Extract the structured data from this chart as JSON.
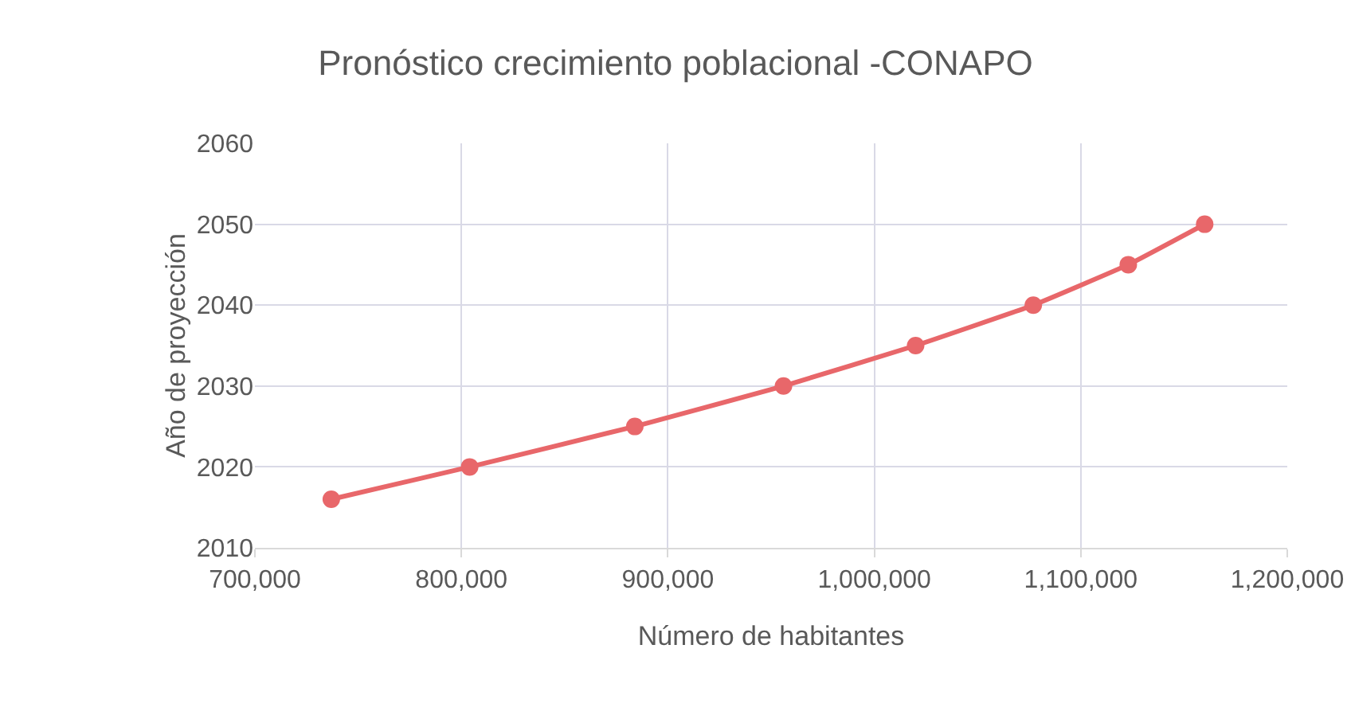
{
  "chart_data": {
    "type": "line",
    "title": "Pronóstico crecimiento poblacional -CONAPO",
    "xlabel": "Número de habitantes",
    "ylabel": "Año de proyección",
    "x": [
      737000,
      804000,
      884000,
      956000,
      1020000,
      1077000,
      1123000,
      1160000
    ],
    "series": [
      {
        "color": "#e8676a",
        "values": [
          2016,
          2020,
          2025,
          2030,
          2035,
          2040,
          2045,
          2050
        ]
      }
    ],
    "xlim": [
      700000,
      1200000
    ],
    "xticks": [
      {
        "value": 700000,
        "label": "700,000"
      },
      {
        "value": 800000,
        "label": "800,000"
      },
      {
        "value": 900000,
        "label": "900,000"
      },
      {
        "value": 1000000,
        "label": "1,000,000"
      },
      {
        "value": 1100000,
        "label": "1,100,000"
      },
      {
        "value": 1200000,
        "label": "1,200,000"
      }
    ],
    "ylim": [
      2010,
      2060
    ],
    "yticks": [
      2010,
      2020,
      2030,
      2040,
      2050,
      2060
    ],
    "grid": true,
    "marker": "circle",
    "line_style": "solid"
  }
}
